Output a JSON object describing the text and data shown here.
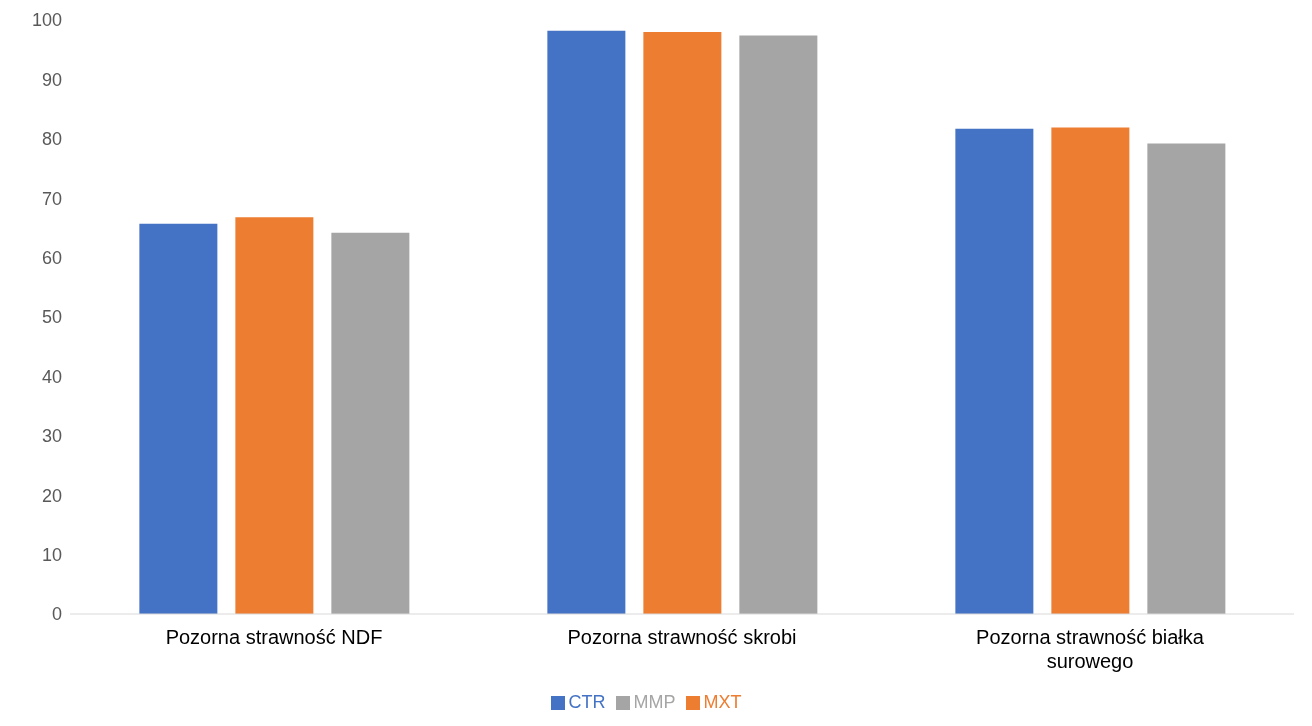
{
  "chart_data": {
    "type": "bar",
    "categories": [
      "Pozorna strawność NDF",
      "Pozorna strawność skrobi",
      "Pozorna strawność białka surowego"
    ],
    "series": [
      {
        "name": "CTR",
        "color": "#4472c4",
        "values": [
          65.7,
          98.2,
          81.7
        ]
      },
      {
        "name": "MXT",
        "color": "#ed7d31",
        "values": [
          66.8,
          98.0,
          81.9
        ]
      },
      {
        "name": "MMP",
        "color": "#a5a5a5",
        "values": [
          64.2,
          97.4,
          79.2
        ]
      }
    ],
    "ylim": [
      0,
      100
    ],
    "yticks": [
      0,
      10,
      20,
      30,
      40,
      50,
      60,
      70,
      80,
      90,
      100
    ],
    "grid": false,
    "legend": "bottom"
  }
}
